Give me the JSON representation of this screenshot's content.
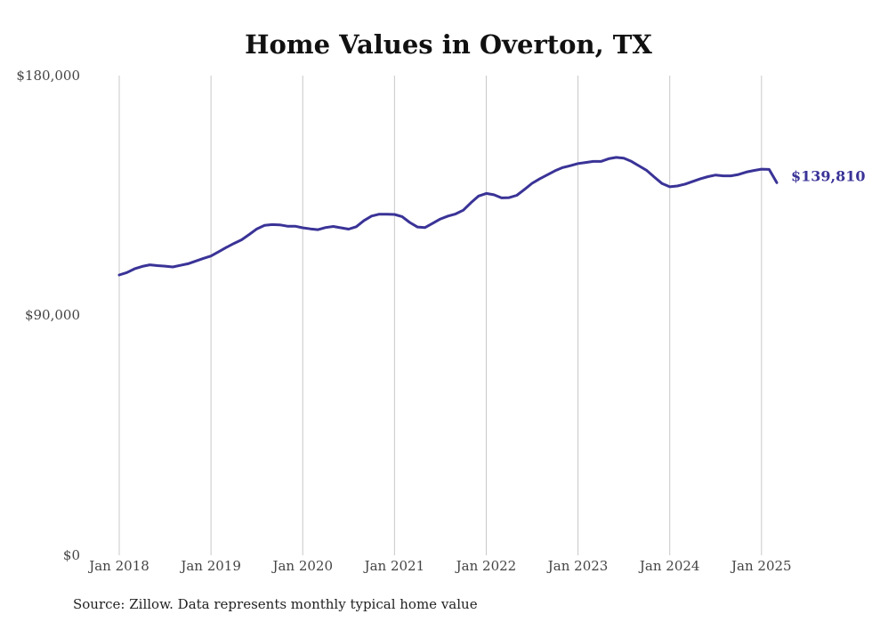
{
  "colors": {
    "line": "#3a3397",
    "grid": "#c8c8c8",
    "text": "#444444"
  },
  "chart_data": {
    "type": "line",
    "title": "Home Values in Overton, TX",
    "xlabel": "",
    "ylabel": "",
    "ylim": [
      0,
      180000
    ],
    "yticks": [
      {
        "value": 0,
        "label": "$0"
      },
      {
        "value": 90000,
        "label": "$90,000"
      },
      {
        "value": 180000,
        "label": "$180,000"
      }
    ],
    "xticks": [
      {
        "value": "2018-01",
        "label": "Jan 2018"
      },
      {
        "value": "2019-01",
        "label": "Jan 2019"
      },
      {
        "value": "2020-01",
        "label": "Jan 2020"
      },
      {
        "value": "2021-01",
        "label": "Jan 2021"
      },
      {
        "value": "2022-01",
        "label": "Jan 2022"
      },
      {
        "value": "2023-01",
        "label": "Jan 2023"
      },
      {
        "value": "2024-01",
        "label": "Jan 2024"
      },
      {
        "value": "2025-01",
        "label": "Jan 2025"
      }
    ],
    "grid": {
      "vertical": true,
      "horizontal": false
    },
    "end_label": "$139,810",
    "series": [
      {
        "x": [
          "2018-01",
          "2018-02",
          "2018-03",
          "2018-04",
          "2018-05",
          "2018-06",
          "2018-07",
          "2018-08",
          "2018-09",
          "2018-10",
          "2018-11",
          "2018-12",
          "2019-01",
          "2019-02",
          "2019-03",
          "2019-04",
          "2019-05",
          "2019-06",
          "2019-07",
          "2019-08",
          "2019-09",
          "2019-10",
          "2019-11",
          "2019-12",
          "2020-01",
          "2020-02",
          "2020-03",
          "2020-04",
          "2020-05",
          "2020-06",
          "2020-07",
          "2020-08",
          "2020-09",
          "2020-10",
          "2020-11",
          "2020-12",
          "2021-01",
          "2021-02",
          "2021-03",
          "2021-04",
          "2021-05",
          "2021-06",
          "2021-07",
          "2021-08",
          "2021-09",
          "2021-10",
          "2021-11",
          "2021-12",
          "2022-01",
          "2022-02",
          "2022-03",
          "2022-04",
          "2022-05",
          "2022-06",
          "2022-07",
          "2022-08",
          "2022-09",
          "2022-10",
          "2022-11",
          "2022-12",
          "2023-01",
          "2023-02",
          "2023-03",
          "2023-04",
          "2023-05",
          "2023-06",
          "2023-07",
          "2023-08",
          "2023-09",
          "2023-10",
          "2023-11",
          "2023-12",
          "2024-01",
          "2024-02",
          "2024-03",
          "2024-04",
          "2024-05",
          "2024-06",
          "2024-07",
          "2024-08",
          "2024-09",
          "2024-10",
          "2024-11",
          "2024-12",
          "2025-01",
          "2025-02",
          "2025-03"
        ],
        "values": [
          105200,
          106100,
          107500,
          108400,
          109000,
          108700,
          108500,
          108200,
          108800,
          109400,
          110400,
          111400,
          112300,
          113900,
          115500,
          117000,
          118400,
          120400,
          122500,
          123800,
          124100,
          124000,
          123500,
          123500,
          122900,
          122500,
          122200,
          123000,
          123400,
          122900,
          122400,
          123300,
          125600,
          127300,
          128000,
          128000,
          127900,
          127100,
          124900,
          123200,
          123000,
          124600,
          126200,
          127300,
          128100,
          129500,
          132300,
          134800,
          135800,
          135300,
          134100,
          134200,
          135100,
          137300,
          139600,
          141300,
          142800,
          144300,
          145500,
          146200,
          147000,
          147400,
          147800,
          147800,
          148800,
          149300,
          149000,
          147800,
          146100,
          144400,
          141900,
          139500,
          138300,
          138600,
          139300,
          140300,
          141300,
          142100,
          142700,
          142400,
          142400,
          142900,
          143800,
          144400,
          144900,
          144800,
          139810
        ]
      }
    ]
  },
  "source": "Source: Zillow. Data represents monthly typical home value"
}
